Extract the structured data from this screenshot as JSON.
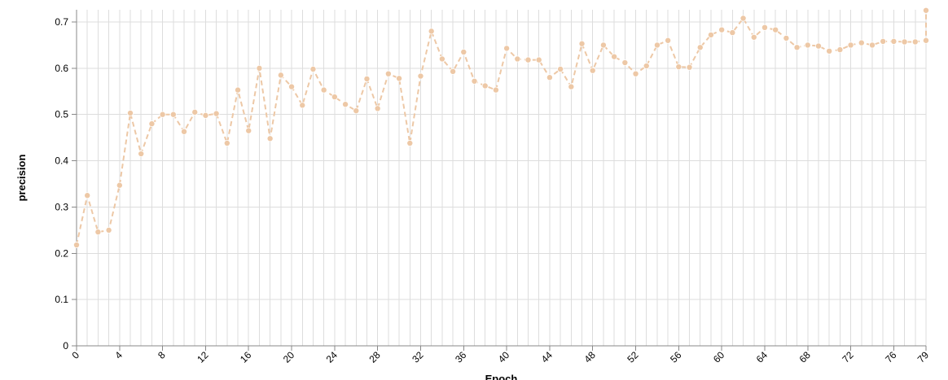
{
  "chart_data": {
    "type": "line",
    "xlabel": "Epoch",
    "ylabel": "precision",
    "xlim": [
      0,
      79
    ],
    "ylim": [
      0,
      0.7
    ],
    "x_ticks": [
      0,
      4,
      8,
      12,
      16,
      20,
      24,
      28,
      32,
      36,
      40,
      44,
      48,
      52,
      56,
      60,
      64,
      68,
      72,
      76,
      79
    ],
    "y_ticks": [
      0,
      0.1,
      0.2,
      0.3,
      0.4,
      0.5,
      0.6,
      0.7
    ],
    "y_tick_labels": [
      "0",
      "0.1",
      "0.2",
      "0.3",
      "0.4",
      "0.5",
      "0.6",
      "0.7"
    ],
    "grid": true,
    "legend": "none",
    "series": [
      {
        "color": "#edc8a6",
        "line_style": "dashed",
        "marker": "circle",
        "x": [
          0,
          1,
          2,
          3,
          4,
          5,
          6,
          7,
          8,
          9,
          10,
          11,
          12,
          13,
          14,
          15,
          16,
          17,
          18,
          19,
          20,
          21,
          22,
          23,
          24,
          25,
          26,
          27,
          28,
          29,
          30,
          31,
          32,
          33,
          34,
          35,
          36,
          37,
          38,
          39,
          40,
          41,
          42,
          43,
          44,
          45,
          46,
          47,
          48,
          49,
          50,
          51,
          52,
          53,
          54,
          55,
          56,
          57,
          58,
          59,
          60,
          61,
          62,
          63,
          64,
          65,
          66,
          67,
          68,
          69,
          70,
          71,
          72,
          73,
          74,
          75,
          76,
          77,
          78,
          79,
          79
        ],
        "values": [
          0.218,
          0.325,
          0.246,
          0.25,
          0.347,
          0.503,
          0.415,
          0.48,
          0.5,
          0.5,
          0.463,
          0.505,
          0.498,
          0.502,
          0.438,
          0.553,
          0.465,
          0.6,
          0.448,
          0.585,
          0.56,
          0.52,
          0.598,
          0.553,
          0.538,
          0.522,
          0.508,
          0.577,
          0.513,
          0.588,
          0.578,
          0.438,
          0.583,
          0.68,
          0.62,
          0.593,
          0.635,
          0.572,
          0.562,
          0.553,
          0.643,
          0.62,
          0.618,
          0.618,
          0.58,
          0.598,
          0.56,
          0.653,
          0.595,
          0.65,
          0.625,
          0.612,
          0.588,
          0.605,
          0.65,
          0.66,
          0.603,
          0.602,
          0.645,
          0.672,
          0.683,
          0.677,
          0.708,
          0.667,
          0.688,
          0.683,
          0.665,
          0.645,
          0.65,
          0.648,
          0.637,
          0.64,
          0.65,
          0.655,
          0.65,
          0.658,
          0.658,
          0.657,
          0.657,
          0.66,
          0.725
        ]
      }
    ]
  }
}
